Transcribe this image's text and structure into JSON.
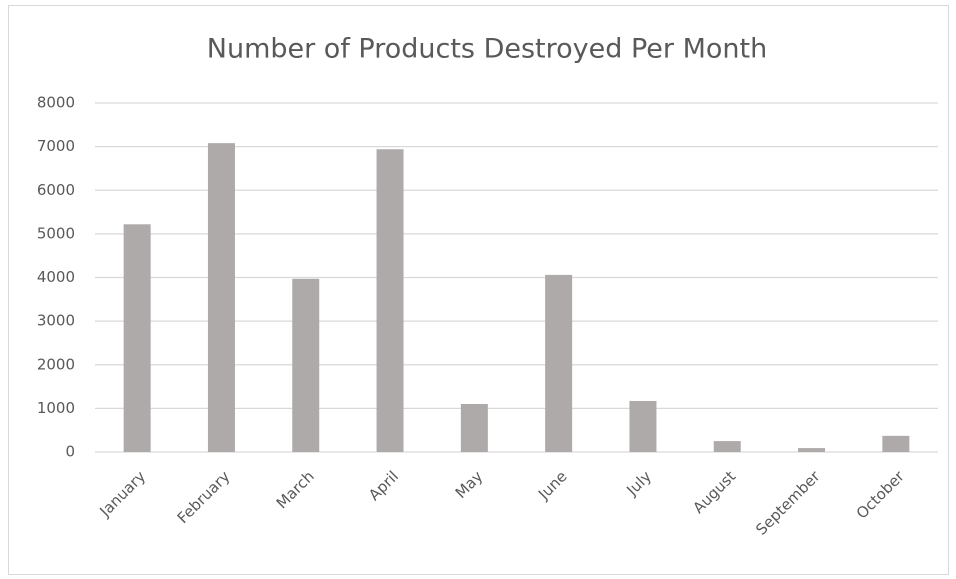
{
  "chart_data": {
    "type": "bar",
    "title": "Number of Products Destroyed Per Month",
    "categories": [
      "January",
      "February",
      "March",
      "April",
      "May",
      "June",
      "July",
      "August",
      "September",
      "October"
    ],
    "values": [
      5220,
      7080,
      3970,
      6940,
      1100,
      4060,
      1170,
      250,
      90,
      370
    ],
    "color": "#aeaaaa",
    "ylim": [
      0,
      8000
    ],
    "yticks": [
      0,
      1000,
      2000,
      3000,
      4000,
      5000,
      6000,
      7000,
      8000
    ],
    "grid": true
  }
}
